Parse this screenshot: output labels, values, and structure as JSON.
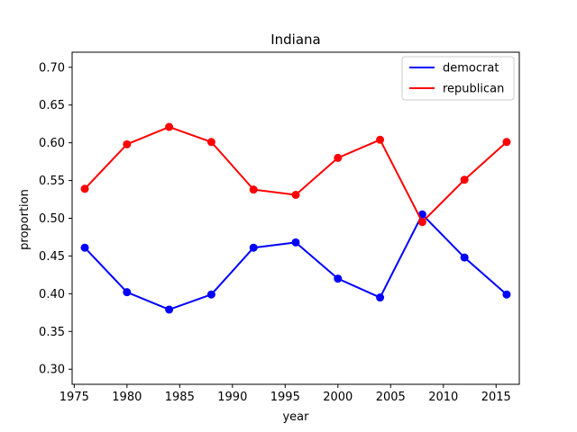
{
  "chart_data": {
    "type": "line",
    "title": "Indiana",
    "xlabel": "year",
    "ylabel": "proportion",
    "x": [
      1976,
      1980,
      1984,
      1988,
      1992,
      1996,
      2000,
      2004,
      2008,
      2012,
      2016
    ],
    "series": [
      {
        "name": "democrat",
        "color": "#0000ff",
        "values": [
          0.461,
          0.402,
          0.379,
          0.399,
          0.461,
          0.468,
          0.42,
          0.395,
          0.505,
          0.448,
          0.399
        ]
      },
      {
        "name": "republican",
        "color": "#ff0000",
        "values": [
          0.539,
          0.598,
          0.621,
          0.601,
          0.538,
          0.531,
          0.58,
          0.604,
          0.495,
          0.551,
          0.601
        ]
      }
    ],
    "xlim": [
      1974.8,
      2017.2
    ],
    "ylim": [
      0.28,
      0.72
    ],
    "xticks": [
      1975,
      1980,
      1985,
      1990,
      1995,
      2000,
      2005,
      2010,
      2015
    ],
    "yticks": [
      "0.30",
      "0.35",
      "0.40",
      "0.45",
      "0.50",
      "0.55",
      "0.60",
      "0.65",
      "0.70"
    ],
    "grid": false,
    "legend_position": "top-right"
  }
}
